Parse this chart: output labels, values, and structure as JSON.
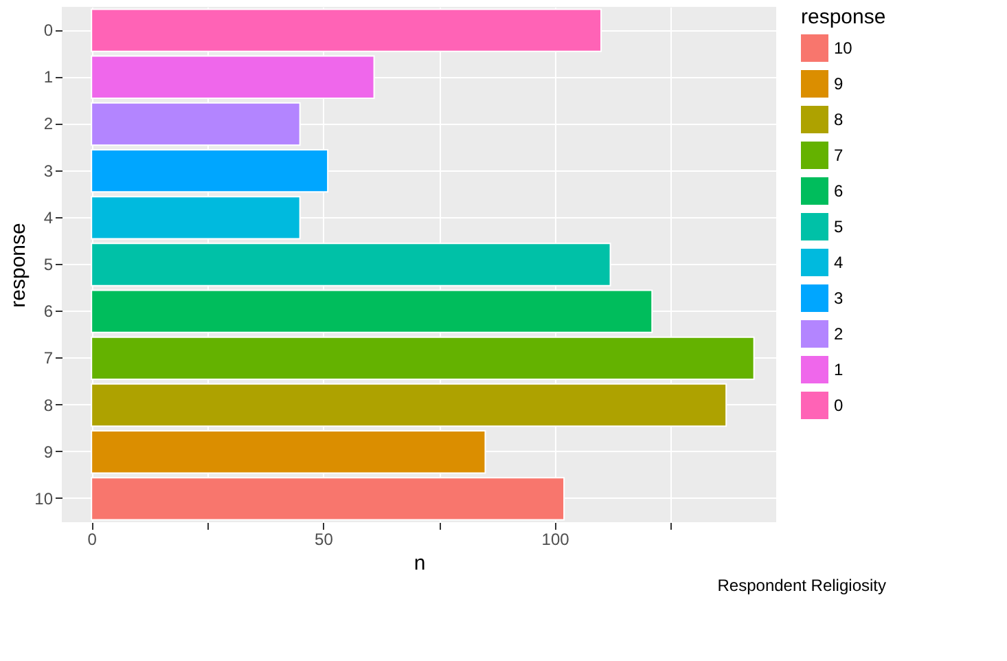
{
  "chart_data": {
    "type": "bar",
    "orientation": "horizontal",
    "xlabel": "n",
    "ylabel": "response",
    "legend_title": "response",
    "categories": [
      "0",
      "1",
      "2",
      "3",
      "4",
      "5",
      "6",
      "7",
      "8",
      "9",
      "10"
    ],
    "series": [
      {
        "name": "10",
        "color": "#F8766D",
        "values": [
          null,
          null,
          null,
          null,
          null,
          null,
          null,
          null,
          null,
          null,
          102
        ]
      },
      {
        "name": "9",
        "color": "#DB8E00",
        "values": [
          null,
          null,
          null,
          null,
          null,
          null,
          null,
          null,
          null,
          85,
          null
        ]
      },
      {
        "name": "8",
        "color": "#AEA200",
        "values": [
          null,
          null,
          null,
          null,
          null,
          null,
          null,
          null,
          137,
          null,
          null
        ]
      },
      {
        "name": "7",
        "color": "#64B200",
        "values": [
          null,
          null,
          null,
          null,
          null,
          null,
          null,
          143,
          null,
          null,
          null
        ]
      },
      {
        "name": "6",
        "color": "#00BD5C",
        "values": [
          null,
          null,
          null,
          null,
          null,
          null,
          121,
          null,
          null,
          null,
          null
        ]
      },
      {
        "name": "5",
        "color": "#00C1A7",
        "values": [
          null,
          null,
          null,
          null,
          null,
          112,
          null,
          null,
          null,
          null,
          null
        ]
      },
      {
        "name": "4",
        "color": "#00BADE",
        "values": [
          null,
          null,
          null,
          null,
          45,
          null,
          null,
          null,
          null,
          null,
          null
        ]
      },
      {
        "name": "3",
        "color": "#00A6FF",
        "values": [
          null,
          null,
          null,
          51,
          null,
          null,
          null,
          null,
          null,
          null,
          null
        ]
      },
      {
        "name": "2",
        "color": "#B385FF",
        "values": [
          null,
          null,
          45,
          null,
          null,
          null,
          null,
          null,
          null,
          null,
          null
        ]
      },
      {
        "name": "1",
        "color": "#EF67EB",
        "values": [
          null,
          61,
          null,
          null,
          null,
          null,
          null,
          null,
          null,
          null,
          null
        ]
      },
      {
        "name": "0",
        "color": "#FF63B6",
        "values": [
          110,
          null,
          null,
          null,
          null,
          null,
          null,
          null,
          null,
          null,
          null
        ]
      }
    ],
    "xlim": [
      -6.4,
      147.8
    ],
    "xticks": [
      0,
      {
        "value": 25,
        "label": null
      },
      50,
      {
        "value": 75,
        "label": null
      },
      100,
      {
        "value": 125,
        "label": null
      }
    ],
    "grid": true,
    "legend": "right",
    "annotations": [
      "Respondent Religiosity"
    ]
  }
}
